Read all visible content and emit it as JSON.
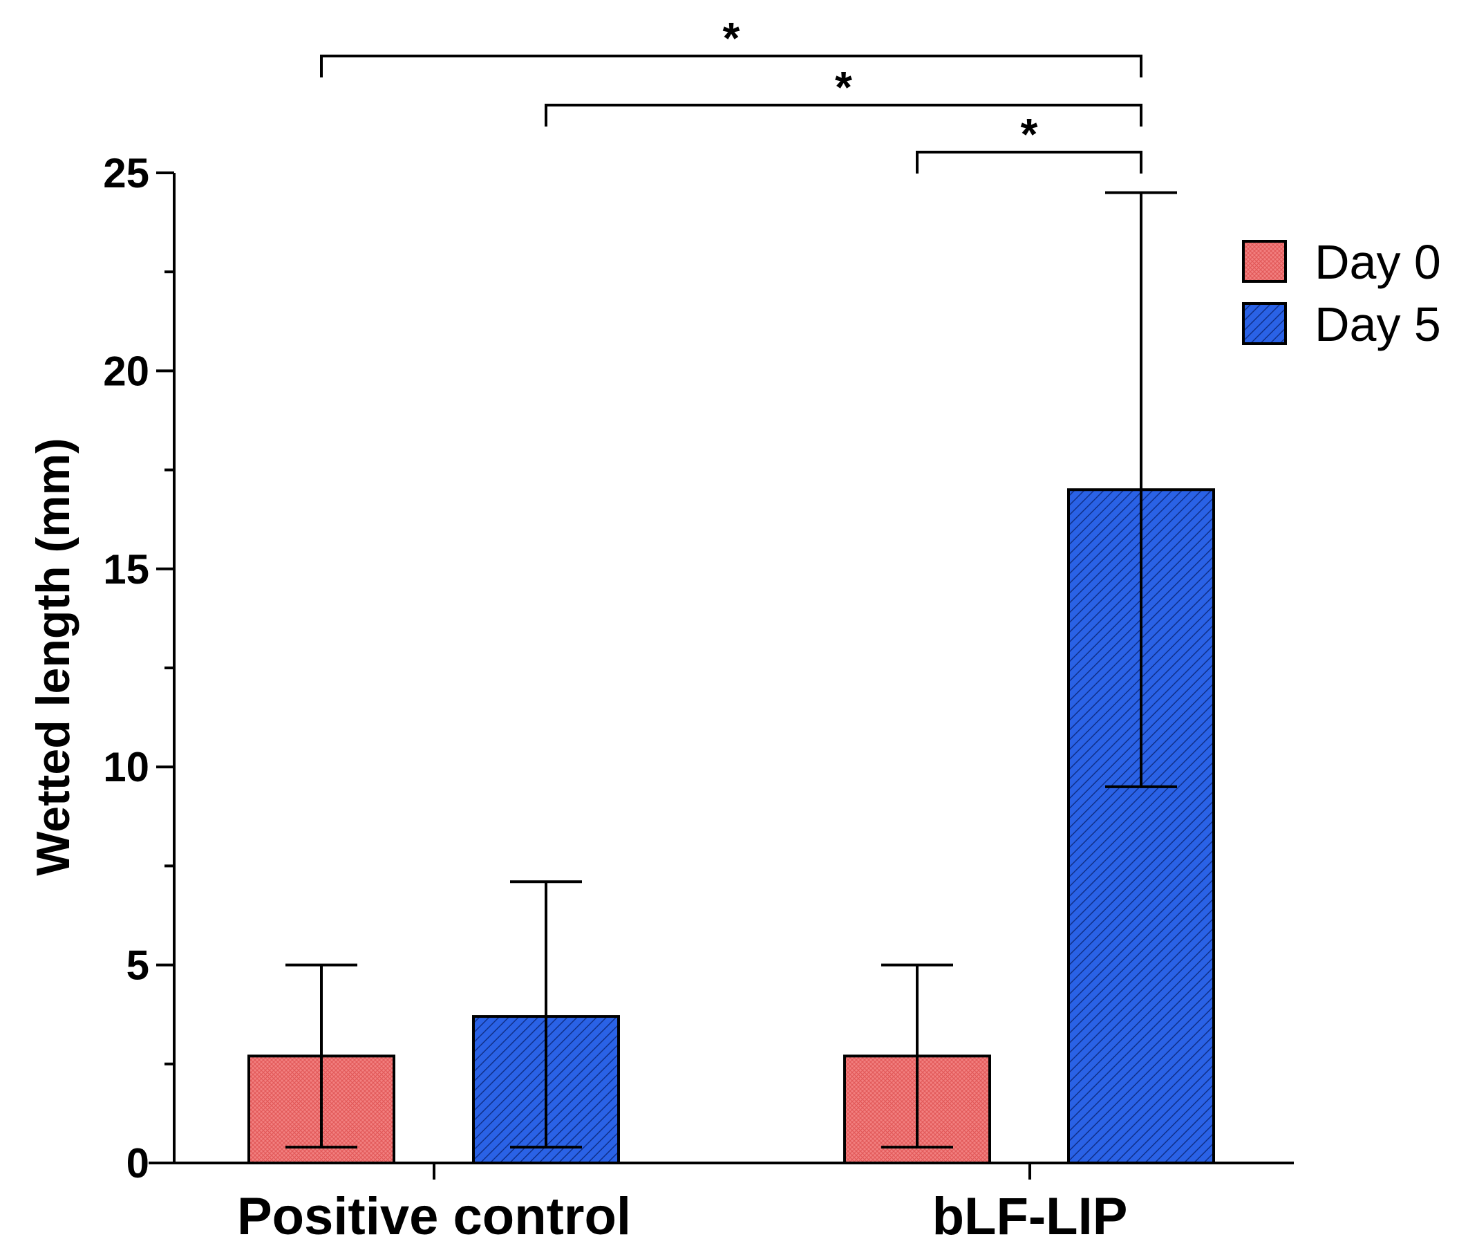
{
  "chart_data": {
    "type": "bar",
    "title": "",
    "xlabel": "",
    "ylabel": "Wetted length  (mm)",
    "ylim": [
      0,
      25
    ],
    "yticks": [
      0,
      5,
      10,
      15,
      20,
      25
    ],
    "categories": [
      "Positive control",
      "bLF-LIP"
    ],
    "series": [
      {
        "name": "Day 0",
        "color": "#f28080",
        "pattern": "crosshatch",
        "values": [
          2.7,
          2.7
        ],
        "error_upper": [
          5.0,
          5.0
        ],
        "error_lower": [
          0.4,
          0.4
        ]
      },
      {
        "name": "Day 5",
        "color": "#2a62e6",
        "pattern": "diagonal",
        "values": [
          3.7,
          17.0
        ],
        "error_upper": [
          7.1,
          24.5
        ],
        "error_lower": [
          0.4,
          9.5
        ]
      }
    ],
    "significance": [
      {
        "from": "Positive control / Day 0",
        "to": "bLF-LIP / Day 5",
        "label": "*"
      },
      {
        "from": "Positive control / Day 5",
        "to": "bLF-LIP / Day 5",
        "label": "*"
      },
      {
        "from": "bLF-LIP / Day 0",
        "to": "bLF-LIP / Day 5",
        "label": "*"
      }
    ],
    "legend": {
      "position": "top-right",
      "entries": [
        "Day 0",
        "Day 5"
      ]
    }
  }
}
